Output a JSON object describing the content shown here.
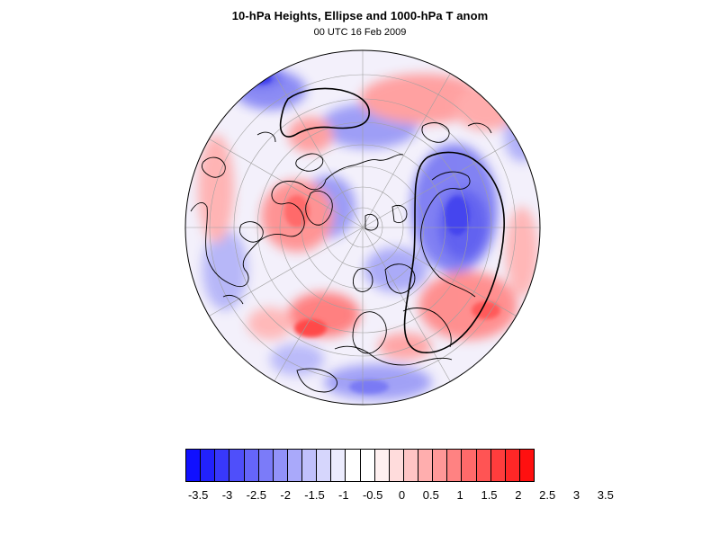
{
  "title": "10-hPa Heights, Ellipse and 1000-hPa T anom",
  "subtitle": "00 UTC 16 Feb 2009",
  "colorbar": {
    "colors": [
      "#1010ff",
      "#2222fd",
      "#3838fb",
      "#4f4ffa",
      "#6565f9",
      "#7b7bf9",
      "#9292f9",
      "#a9a9fa",
      "#c0c0fb",
      "#d6d6fc",
      "#ececfe",
      "#ffffff",
      "#ffffff",
      "#fff0f0",
      "#ffdcdc",
      "#ffc5c5",
      "#ffaeae",
      "#ff9898",
      "#ff8282",
      "#ff6a6a",
      "#ff5454",
      "#ff3d3d",
      "#ff2727",
      "#ff1010"
    ],
    "labels": [
      "-3.5",
      "-3",
      "-2.5",
      "-2",
      "-1.5",
      "-1",
      "-0.5",
      "0",
      "0.5",
      "1",
      "1.5",
      "2",
      "2.5",
      "3",
      "3.5"
    ]
  }
}
